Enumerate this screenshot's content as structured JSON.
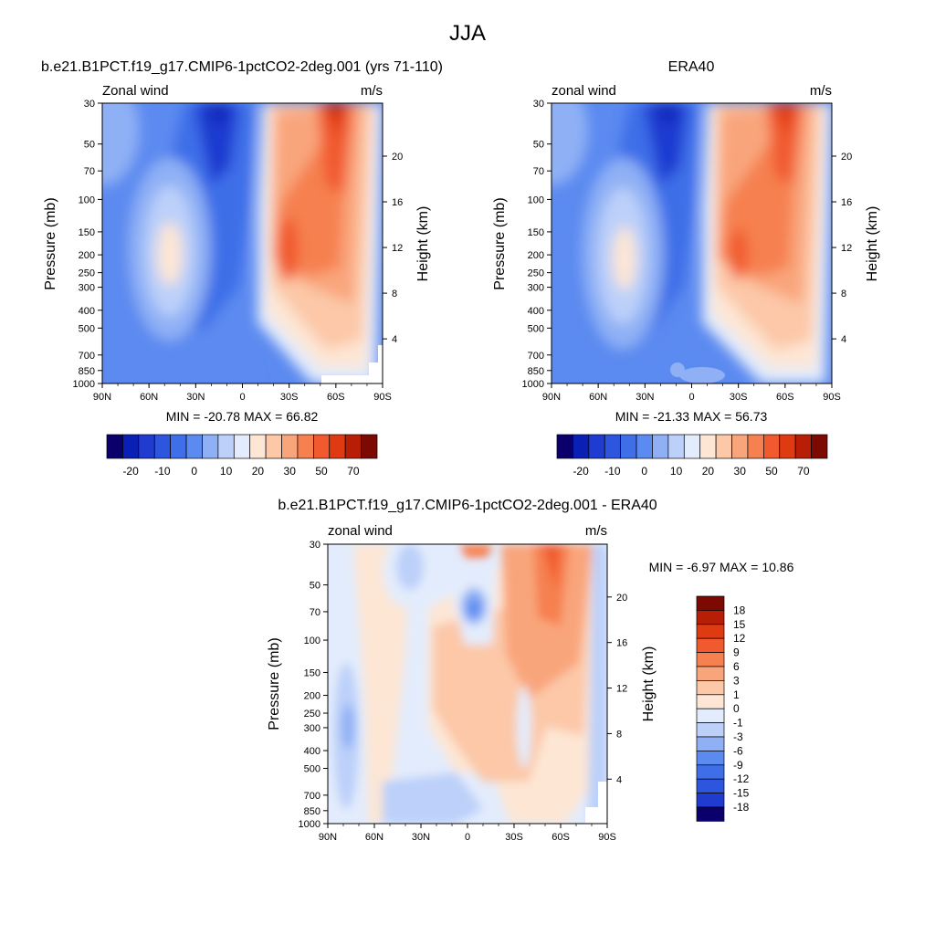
{
  "figure": {
    "title": "JJA"
  },
  "chart_data": [
    {
      "type": "heatmap",
      "title": "b.e21.B1PCT.f19_g17.CMIP6-1pctCO2-2deg.001 (yrs 71-110)",
      "left_label": "Zonal wind",
      "right_label": "m/s",
      "xlabel": "",
      "ylabel": "Pressure (mb)",
      "ylabel_right": "Height (km)",
      "x_ticks": [
        "90N",
        "60N",
        "30N",
        "0",
        "30S",
        "60S",
        "90S"
      ],
      "x_tick_values": [
        90,
        60,
        30,
        0,
        -30,
        -60,
        -90
      ],
      "y_ticks": [
        "30",
        "50",
        "70",
        "100",
        "150",
        "200",
        "250",
        "300",
        "400",
        "500",
        "700",
        "850",
        "1000"
      ],
      "y_tick_values": [
        30,
        50,
        70,
        100,
        150,
        200,
        250,
        300,
        400,
        500,
        700,
        850,
        1000
      ],
      "y_scale": "log",
      "height_ticks": [
        "4",
        "8",
        "12",
        "16",
        "20"
      ],
      "height_tick_values": [
        4,
        8,
        12,
        16,
        20
      ],
      "stats": "MIN = -20.78  MAX = 66.82",
      "min": -20.78,
      "max": 66.82,
      "features": [
        {
          "desc": "westerly jet core",
          "lat": -28,
          "p": 200,
          "value": 55
        },
        {
          "desc": "stratospheric westerly jet",
          "lat": -55,
          "p": 30,
          "value": 66
        },
        {
          "desc": "easterly core",
          "lat": 20,
          "p": 30,
          "value": -20
        },
        {
          "desc": "NH subtropical jet",
          "lat": 45,
          "p": 200,
          "value": 15
        }
      ]
    },
    {
      "type": "heatmap",
      "title": "ERA40",
      "left_label": "zonal wind",
      "right_label": "m/s",
      "xlabel": "",
      "ylabel": "Pressure (mb)",
      "ylabel_right": "Height (km)",
      "x_ticks": [
        "90N",
        "60N",
        "30N",
        "0",
        "30S",
        "60S",
        "90S"
      ],
      "x_tick_values": [
        90,
        60,
        30,
        0,
        -30,
        -60,
        -90
      ],
      "y_ticks": [
        "30",
        "50",
        "70",
        "100",
        "150",
        "200",
        "250",
        "300",
        "400",
        "500",
        "700",
        "850",
        "1000"
      ],
      "y_tick_values": [
        30,
        50,
        70,
        100,
        150,
        200,
        250,
        300,
        400,
        500,
        700,
        850,
        1000
      ],
      "y_scale": "log",
      "height_ticks": [
        "4",
        "8",
        "12",
        "16",
        "20"
      ],
      "height_tick_values": [
        4,
        8,
        12,
        16,
        20
      ],
      "stats": "MIN = -21.33  MAX = 56.73",
      "min": -21.33,
      "max": 56.73,
      "features": [
        {
          "desc": "westerly jet core",
          "lat": -30,
          "p": 200,
          "value": 45
        },
        {
          "desc": "stratospheric westerly jet",
          "lat": -58,
          "p": 30,
          "value": 55
        },
        {
          "desc": "easterly core",
          "lat": 20,
          "p": 30,
          "value": -21
        },
        {
          "desc": "NH subtropical jet",
          "lat": 45,
          "p": 200,
          "value": 15
        }
      ]
    },
    {
      "type": "heatmap",
      "title": "b.e21.B1PCT.f19_g17.CMIP6-1pctCO2-2deg.001 - ERA40",
      "left_label": "zonal wind",
      "right_label": "m/s",
      "xlabel": "",
      "ylabel": "Pressure (mb)",
      "ylabel_right": "Height (km)",
      "x_ticks": [
        "90N",
        "60N",
        "30N",
        "0",
        "30S",
        "60S",
        "90S"
      ],
      "x_tick_values": [
        90,
        60,
        30,
        0,
        -30,
        -60,
        -90
      ],
      "y_ticks": [
        "30",
        "50",
        "70",
        "100",
        "150",
        "200",
        "250",
        "300",
        "400",
        "500",
        "700",
        "850",
        "1000"
      ],
      "y_tick_values": [
        30,
        50,
        70,
        100,
        150,
        200,
        250,
        300,
        400,
        500,
        700,
        850,
        1000
      ],
      "y_scale": "log",
      "height_ticks": [
        "4",
        "8",
        "12",
        "16",
        "20"
      ],
      "height_tick_values": [
        4,
        8,
        12,
        16,
        20
      ],
      "stats": "MIN =  -6.97  MAX =  10.86",
      "min": -6.97,
      "max": 10.86,
      "features": [
        {
          "desc": "positive difference band",
          "lat": -50,
          "p": 50,
          "value": 10
        },
        {
          "desc": "negative difference",
          "lat": -5,
          "p": 70,
          "value": -6
        },
        {
          "desc": "positive broad region",
          "lat": 5,
          "p": 150,
          "value": 5
        }
      ]
    }
  ],
  "colorbars": {
    "full": {
      "orientation": "horizontal",
      "levels": [
        -25,
        -20,
        -15,
        -10,
        -5,
        0,
        5,
        10,
        15,
        20,
        25,
        30,
        40,
        45,
        50,
        60,
        70
      ],
      "labels": [
        "-20",
        "-10",
        "0",
        "10",
        "20",
        "30",
        "50",
        "70"
      ],
      "colors": [
        "#0b006b",
        "#0a20b4",
        "#1f3bd0",
        "#2d55dd",
        "#3e6ee8",
        "#5b8af0",
        "#8fb0f5",
        "#bcd0f9",
        "#e3ecfc",
        "#fde6d4",
        "#fcc8a8",
        "#f9a57c",
        "#f68050",
        "#f15a2e",
        "#e03a12",
        "#b81e06",
        "#7d0a02"
      ]
    },
    "diff": {
      "orientation": "vertical",
      "labels": [
        "18",
        "15",
        "12",
        "9",
        "6",
        "3",
        "1",
        "0",
        "-1",
        "-3",
        "-6",
        "-9",
        "-12",
        "-15",
        "-18"
      ],
      "colors": [
        "#7d0a02",
        "#b81e06",
        "#e03a12",
        "#f15a2e",
        "#f68050",
        "#f9a57c",
        "#fcc8a8",
        "#fde6d4",
        "#e3ecfc",
        "#bcd0f9",
        "#8fb0f5",
        "#5b8af0",
        "#3e6ee8",
        "#2d55dd",
        "#1f3bd0",
        "#0b006b"
      ]
    }
  }
}
